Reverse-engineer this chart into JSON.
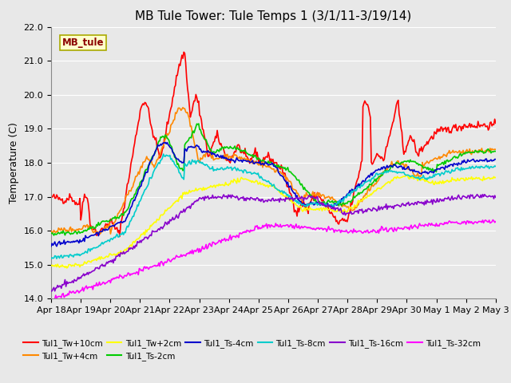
{
  "title": "MB Tule Tower: Tule Temps 1 (3/1/11-3/19/14)",
  "ylabel": "Temperature (C)",
  "xlabel": "",
  "ylim": [
    14.0,
    22.0
  ],
  "yticks": [
    14.0,
    15.0,
    16.0,
    17.0,
    18.0,
    19.0,
    20.0,
    21.0,
    22.0
  ],
  "xtick_labels": [
    "Apr 18",
    "Apr 19",
    "Apr 20",
    "Apr 21",
    "Apr 22",
    "Apr 23",
    "Apr 24",
    "Apr 25",
    "Apr 26",
    "Apr 27",
    "Apr 28",
    "Apr 29",
    "Apr 30",
    "May 1",
    "May 2",
    "May 3"
  ],
  "n_points": 480,
  "background_color": "#e8e8e8",
  "plot_bg_color": "#e8e8e8",
  "grid_color": "#ffffff",
  "legend_label": "MB_tule",
  "series_labels": [
    "Tul1_Tw+10cm",
    "Tul1_Tw+4cm",
    "Tul1_Tw+2cm",
    "Tul1_Ts-2cm",
    "Tul1_Ts-4cm",
    "Tul1_Ts-8cm",
    "Tul1_Ts-16cm",
    "Tul1_Ts-32cm"
  ],
  "series_colors": [
    "#ff0000",
    "#ff8800",
    "#ffff00",
    "#00cc00",
    "#0000cc",
    "#00cccc",
    "#8800cc",
    "#ff00ff"
  ],
  "series_linewidths": [
    1.2,
    1.2,
    1.2,
    1.2,
    1.2,
    1.2,
    1.2,
    1.2
  ],
  "title_fontsize": 11,
  "axis_label_fontsize": 9,
  "tick_fontsize": 8
}
